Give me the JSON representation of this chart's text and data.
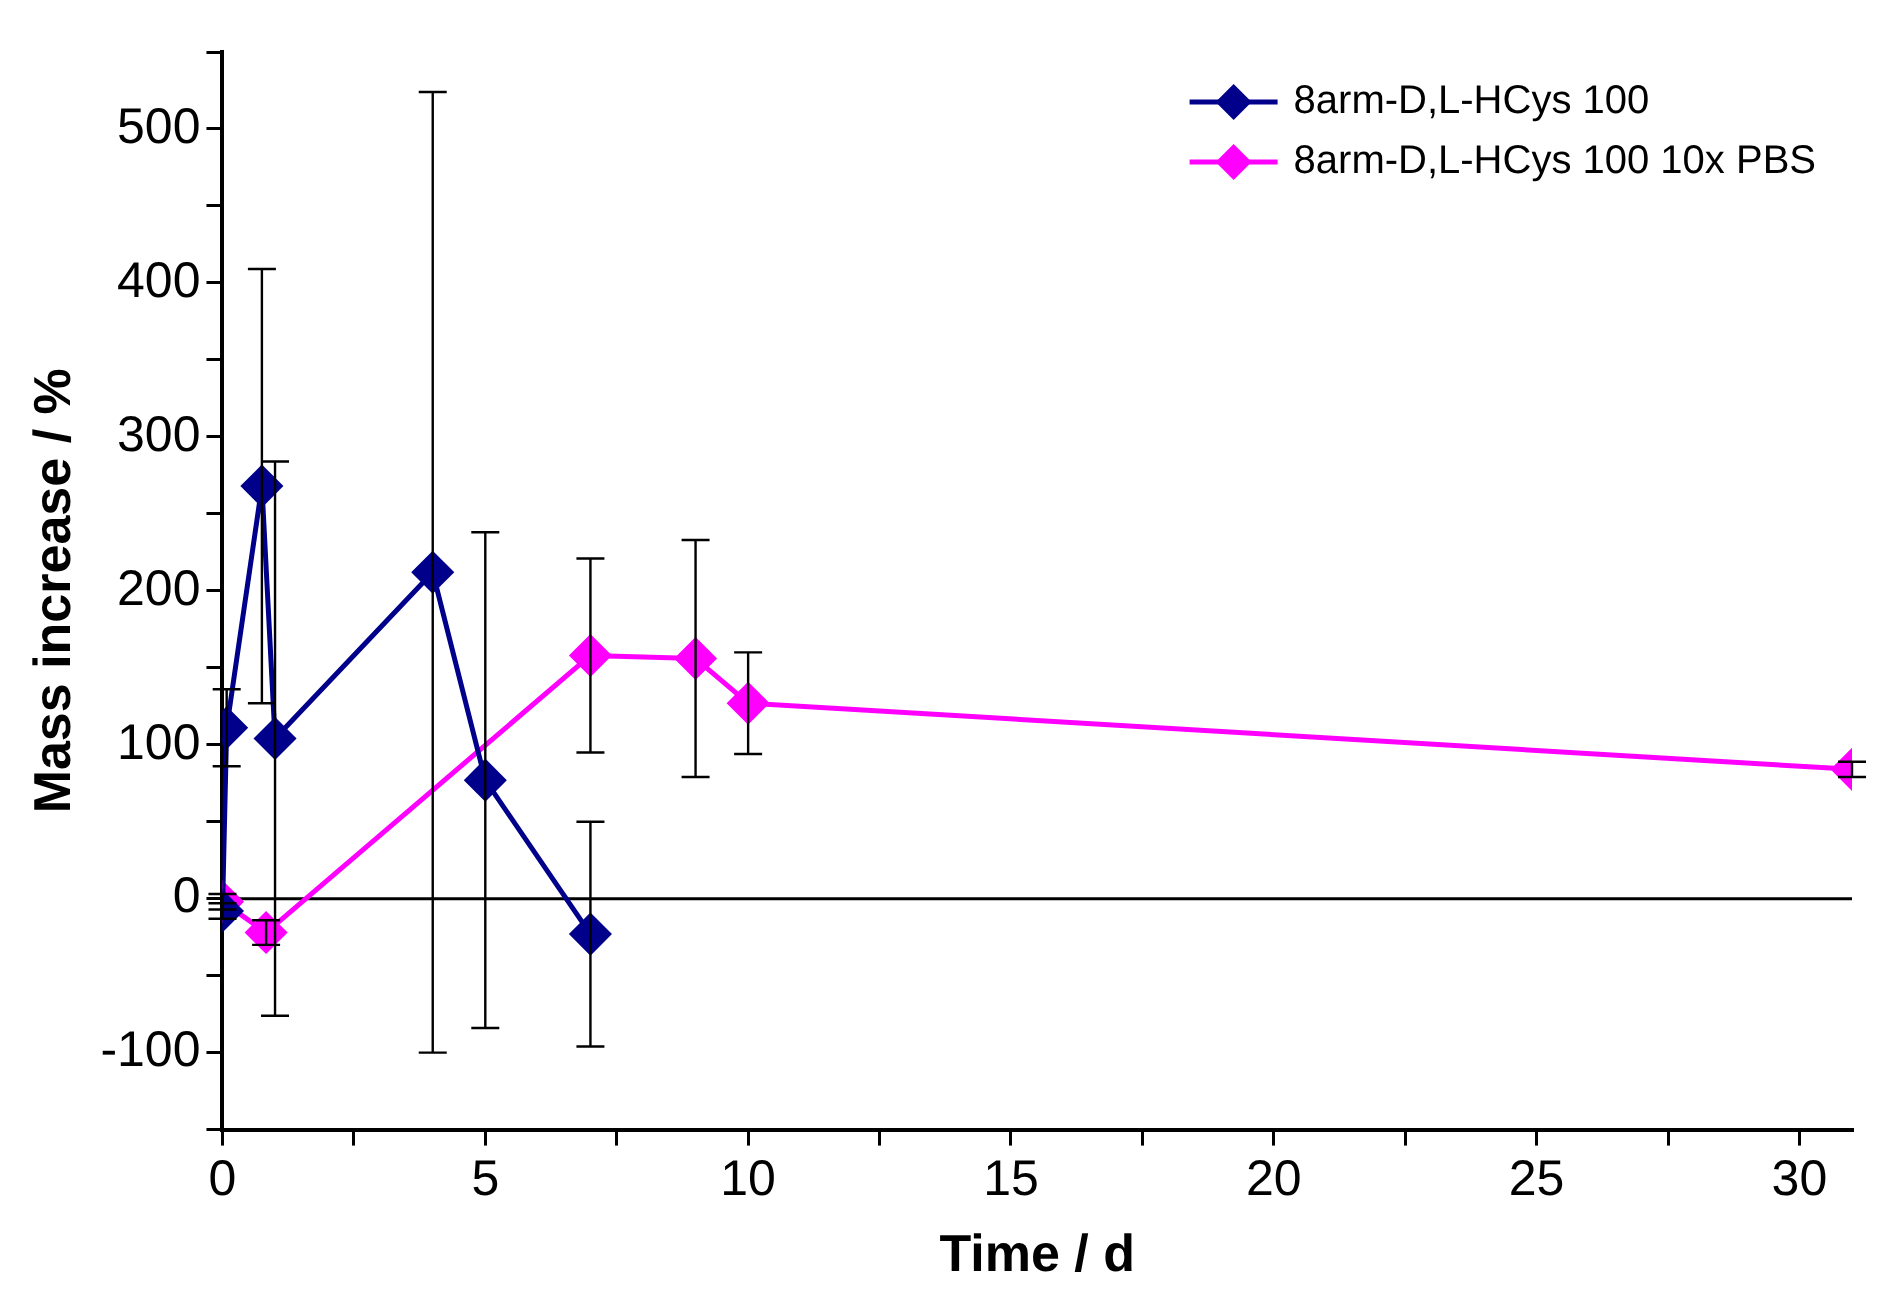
{
  "chart_data": {
    "type": "line",
    "xlabel": "Time / d",
    "ylabel": "Mass increase / %",
    "xlim": [
      0,
      31
    ],
    "xticks": [
      0,
      {
        "value": 2.5,
        "label": null
      },
      5,
      {
        "value": 7.5,
        "label": null
      },
      10,
      {
        "value": 12.5,
        "label": null
      },
      15,
      {
        "value": 17.5,
        "label": null
      },
      20,
      {
        "value": 22.5,
        "label": null
      },
      25,
      {
        "value": 27.5,
        "label": null
      },
      30
    ],
    "ylim": [
      -150,
      550
    ],
    "yticks": [
      {
        "value": -150,
        "label": null
      },
      -100,
      {
        "value": -50,
        "label": null
      },
      0,
      {
        "value": 50,
        "label": null
      },
      100,
      {
        "value": 150,
        "label": null
      },
      200,
      {
        "value": 250,
        "label": null
      },
      300,
      {
        "value": 350,
        "label": null
      },
      400,
      {
        "value": 450,
        "label": null
      },
      500,
      {
        "value": 550,
        "label": null
      }
    ],
    "series": [
      {
        "name": "8arm-D,L-HCys 100",
        "color": "#00008b",
        "x": [
          0,
          0.08,
          0.75,
          1,
          4,
          5,
          7
        ],
        "values": [
          -8,
          111,
          268,
          104,
          212,
          77,
          -23
        ],
        "errors": [
          5,
          25,
          141,
          180,
          312,
          161,
          73
        ]
      },
      {
        "name": "8arm-D,L-HCys 100 10x PBS",
        "color": "#ff00ff",
        "x": [
          0,
          0.83,
          7,
          9,
          10,
          31
        ],
        "values": [
          -2,
          -22,
          158,
          156,
          127,
          84
        ],
        "errors": [
          5,
          8,
          63,
          77,
          33,
          5
        ]
      }
    ],
    "ref_lines": [
      {
        "axis": "y",
        "value": 0,
        "color": "#000000"
      }
    ],
    "grid": false,
    "legend": "top right",
    "marker": "diamond",
    "line_style": "solid"
  }
}
